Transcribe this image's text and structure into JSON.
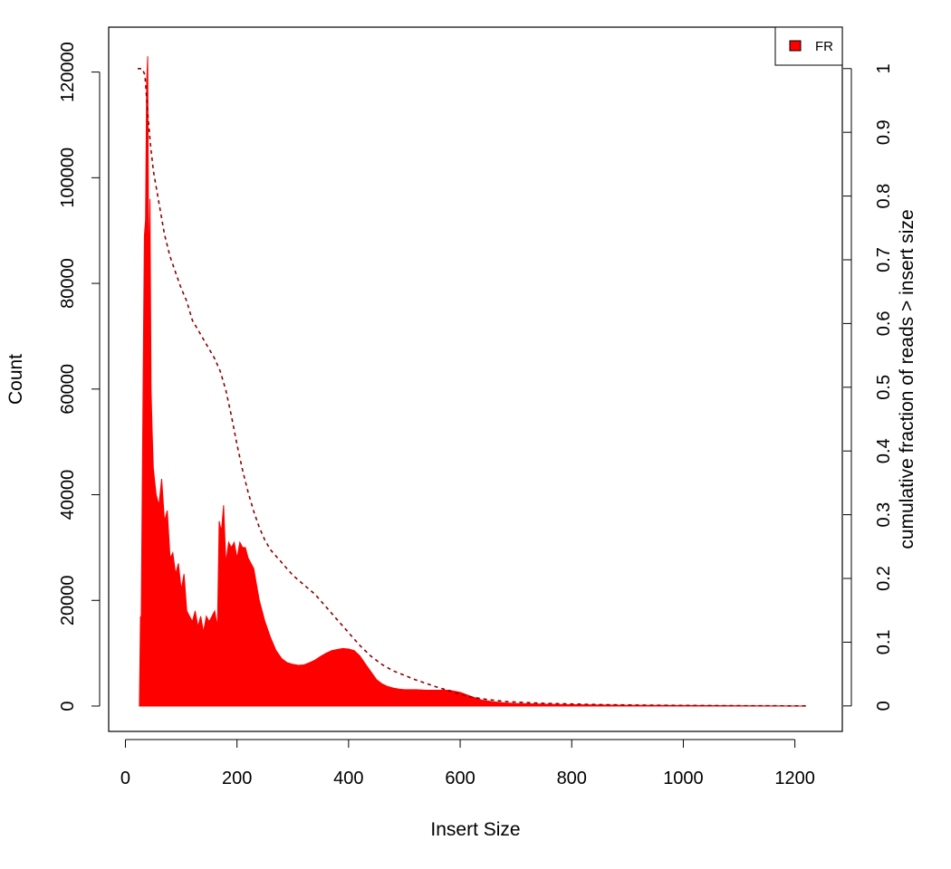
{
  "chart_data": {
    "type": "area",
    "title": "",
    "xlabel": "Insert Size",
    "ylabel": "Count",
    "y2label": "cumulative fraction of reads > insert size",
    "xlim": [
      -30,
      1285
    ],
    "ylim": [
      -4800,
      128500
    ],
    "y2lim": [
      -0.04,
      1.065
    ],
    "xticks": [
      0,
      200,
      400,
      600,
      800,
      1000,
      1200
    ],
    "xtick_labels": [
      "0",
      "200",
      "400",
      "600",
      "800",
      "1000",
      "1200"
    ],
    "yticks": [
      0,
      20000,
      40000,
      60000,
      80000,
      100000,
      120000
    ],
    "ytick_labels": [
      "0",
      "20000",
      "40000",
      "60000",
      "80000",
      "100000",
      "120000"
    ],
    "y2ticks": [
      0,
      0.1,
      0.2,
      0.3,
      0.4,
      0.5,
      0.6,
      0.7,
      0.8,
      0.9,
      1
    ],
    "y2tick_labels": [
      "0",
      "0.1",
      "0.2",
      "0.3",
      "0.4",
      "0.5",
      "0.6",
      "0.7",
      "0.8",
      "0.9",
      "1"
    ],
    "legend": {
      "position": "top-right",
      "entries": [
        "FR"
      ]
    },
    "grid": false,
    "colors": {
      "histogram": "#ff0000",
      "cumulative": "#8b0000",
      "legend_box": "#ff0000"
    },
    "series": [
      {
        "name": "FR",
        "kind": "histogram",
        "x": [
          25,
          27,
          28,
          30,
          32,
          34,
          36,
          38,
          40,
          42,
          44,
          46,
          48,
          50,
          55,
          60,
          65,
          70,
          75,
          80,
          85,
          90,
          95,
          100,
          105,
          110,
          115,
          120,
          125,
          130,
          135,
          140,
          145,
          150,
          155,
          160,
          165,
          168,
          172,
          176,
          180,
          185,
          190,
          195,
          200,
          205,
          210,
          215,
          220,
          225,
          230,
          235,
          240,
          245,
          250,
          260,
          270,
          280,
          290,
          300,
          310,
          320,
          330,
          340,
          350,
          360,
          370,
          380,
          390,
          400,
          410,
          420,
          430,
          440,
          450,
          460,
          470,
          480,
          490,
          500,
          520,
          540,
          560,
          580,
          600,
          620,
          640,
          660,
          680,
          700,
          750,
          800,
          850,
          900,
          950,
          1000,
          1050,
          1100,
          1150,
          1200,
          1220
        ],
        "values": [
          0,
          17000,
          12000,
          40000,
          65000,
          89000,
          92000,
          118000,
          123000,
          80000,
          96000,
          60000,
          52000,
          45000,
          40000,
          38000,
          43000,
          35000,
          37000,
          28000,
          29000,
          25000,
          27000,
          22000,
          25000,
          18000,
          17000,
          16000,
          18000,
          15000,
          17000,
          14000,
          17000,
          16000,
          17000,
          18000,
          15000,
          35000,
          33000,
          38000,
          27000,
          31000,
          30000,
          31000,
          28000,
          31000,
          30000,
          30000,
          28000,
          27000,
          26000,
          23000,
          20000,
          18000,
          16000,
          13000,
          10500,
          9000,
          8200,
          7900,
          7700,
          7800,
          8200,
          8700,
          9400,
          10000,
          10500,
          10700,
          10900,
          10800,
          10500,
          9500,
          8000,
          6500,
          5000,
          4200,
          3700,
          3400,
          3200,
          3100,
          3100,
          3000,
          3000,
          3000,
          2600,
          1800,
          1100,
          800,
          600,
          500,
          350,
          250,
          200,
          150,
          120,
          100,
          80,
          60,
          40,
          20,
          0
        ]
      },
      {
        "name": "",
        "kind": "cumulative",
        "x": [
          22,
          30,
          35,
          40,
          45,
          50,
          60,
          70,
          80,
          90,
          100,
          110,
          120,
          130,
          140,
          150,
          160,
          170,
          180,
          190,
          200,
          210,
          220,
          230,
          240,
          250,
          260,
          270,
          280,
          290,
          300,
          320,
          340,
          360,
          380,
          400,
          420,
          440,
          460,
          480,
          500,
          520,
          540,
          560,
          580,
          600,
          620,
          640,
          660,
          680,
          700,
          750,
          800,
          850,
          900,
          950,
          1000,
          1100,
          1200,
          1220
        ],
        "values": [
          1.0,
          1.0,
          0.99,
          0.93,
          0.88,
          0.84,
          0.79,
          0.74,
          0.705,
          0.68,
          0.655,
          0.635,
          0.605,
          0.59,
          0.575,
          0.56,
          0.545,
          0.525,
          0.495,
          0.455,
          0.41,
          0.37,
          0.335,
          0.305,
          0.28,
          0.26,
          0.245,
          0.235,
          0.225,
          0.215,
          0.205,
          0.19,
          0.175,
          0.155,
          0.135,
          0.115,
          0.095,
          0.078,
          0.065,
          0.055,
          0.048,
          0.041,
          0.035,
          0.029,
          0.024,
          0.018,
          0.014,
          0.011,
          0.009,
          0.007,
          0.006,
          0.004,
          0.003,
          0.002,
          0.0015,
          0.001,
          0.0008,
          0.0004,
          0.0001,
          0.0
        ]
      }
    ]
  }
}
